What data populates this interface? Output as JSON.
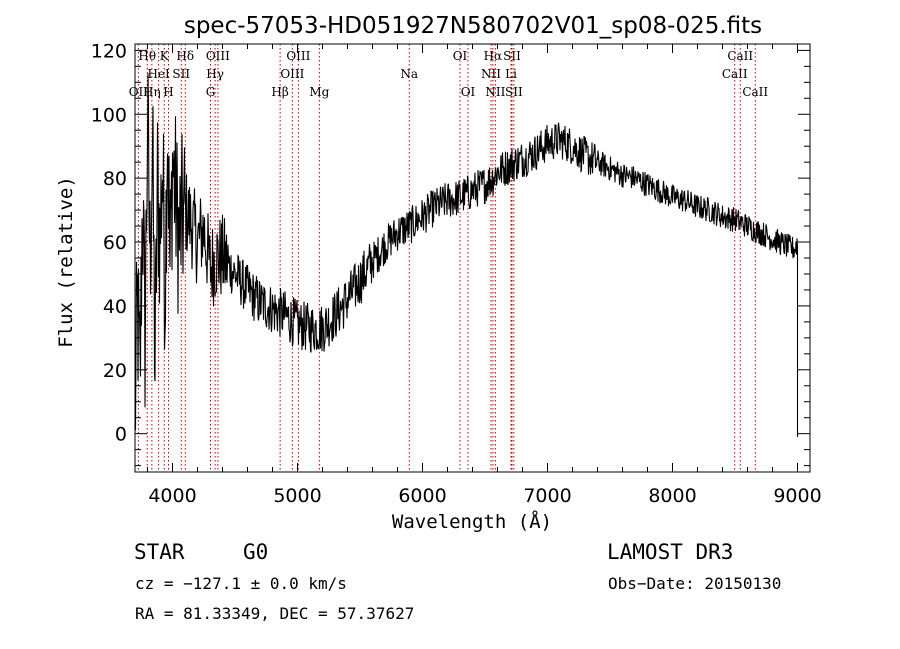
{
  "chart_data": {
    "type": "line",
    "title": "spec-57053-HD051927N580702V01_sp08-025.fits",
    "xlabel": "Wavelength (Å)",
    "ylabel": "Flux (relative)",
    "xlim": [
      3700,
      9100
    ],
    "ylim": [
      -12,
      122
    ],
    "xticks": [
      4000,
      5000,
      6000,
      7000,
      8000,
      9000
    ],
    "yticks": [
      0,
      20,
      40,
      60,
      80,
      100,
      120
    ],
    "series": [
      {
        "name": "flux",
        "x": [
          3700,
          3720,
          3740,
          3760,
          3780,
          3800,
          3820,
          3840,
          3860,
          3880,
          3900,
          3920,
          3940,
          3960,
          3980,
          4000,
          4050,
          4100,
          4150,
          4200,
          4250,
          4300,
          4350,
          4400,
          4500,
          4600,
          4700,
          4800,
          4900,
          5000,
          5100,
          5200,
          5300,
          5400,
          5500,
          5600,
          5700,
          5800,
          5900,
          6000,
          6100,
          6200,
          6300,
          6400,
          6500,
          6560,
          6600,
          6700,
          6800,
          6900,
          7000,
          7100,
          7200,
          7300,
          7400,
          7500,
          7600,
          7700,
          7800,
          7900,
          8000,
          8100,
          8200,
          8300,
          8400,
          8500,
          8600,
          8700,
          8800,
          8900,
          8950,
          8980,
          9000
        ],
        "values": [
          5,
          40,
          15,
          75,
          30,
          98,
          55,
          90,
          20,
          78,
          60,
          85,
          45,
          100,
          50,
          85,
          62,
          70,
          66,
          60,
          64,
          52,
          55,
          55,
          50,
          45,
          41,
          39,
          37,
          34,
          33,
          33,
          37,
          42,
          48,
          54,
          59,
          63,
          65,
          68,
          71,
          73,
          74,
          76,
          78,
          80,
          82,
          84,
          86,
          88,
          91,
          92,
          90,
          87,
          85,
          83,
          81,
          80,
          78,
          76,
          74,
          73,
          71,
          70,
          68,
          67,
          65,
          63,
          61,
          59,
          58,
          58,
          60
        ]
      }
    ],
    "spectral_lines": [
      {
        "label": "OII",
        "wavelength": 3727,
        "row": 2
      },
      {
        "label": "Hθ",
        "wavelength": 3798,
        "row": 0
      },
      {
        "label": "Hη",
        "wavelength": 3835,
        "row": 2
      },
      {
        "label": "HeI",
        "wavelength": 3889,
        "row": 1
      },
      {
        "label": "K",
        "wavelength": 3934,
        "row": 0
      },
      {
        "label": "H",
        "wavelength": 3968,
        "row": 2
      },
      {
        "label": "SII",
        "wavelength": 4070,
        "row": 1
      },
      {
        "label": "Hδ",
        "wavelength": 4102,
        "row": 0
      },
      {
        "label": "G",
        "wavelength": 4304,
        "row": 2
      },
      {
        "label": "Hγ",
        "wavelength": 4341,
        "row": 1
      },
      {
        "label": "OIII",
        "wavelength": 4363,
        "row": 0
      },
      {
        "label": "Hβ",
        "wavelength": 4861,
        "row": 2
      },
      {
        "label": "OIII",
        "wavelength": 4959,
        "row": 1
      },
      {
        "label": "OIII",
        "wavelength": 5007,
        "row": 0
      },
      {
        "label": "Mg",
        "wavelength": 5175,
        "row": 2
      },
      {
        "label": "Na",
        "wavelength": 5894,
        "row": 1
      },
      {
        "label": "OI",
        "wavelength": 6300,
        "row": 0
      },
      {
        "label": "OI",
        "wavelength": 6364,
        "row": 2
      },
      {
        "label": "NII",
        "wavelength": 6548,
        "row": 1
      },
      {
        "label": "Hα",
        "wavelength": 6563,
        "row": 0
      },
      {
        "label": "NII",
        "wavelength": 6583,
        "row": 2
      },
      {
        "label": "Li",
        "wavelength": 6708,
        "row": 1
      },
      {
        "label": "SII",
        "wavelength": 6716,
        "row": 0
      },
      {
        "label": "SII",
        "wavelength": 6731,
        "row": 2
      },
      {
        "label": "CaII",
        "wavelength": 8498,
        "row": 1
      },
      {
        "label": "CaII",
        "wavelength": 8542,
        "row": 0
      },
      {
        "label": "CaII",
        "wavelength": 8662,
        "row": 2
      }
    ]
  },
  "info": {
    "object_type": "STAR",
    "subclass": "G0",
    "survey": "LAMOST DR3",
    "cz_text": "cz = −127.1 ± 0.0 km/s",
    "obs_date_text": "Obs−Date: 20150130",
    "radec_text": "RA =  81.33349, DEC =  57.37627"
  },
  "colors": {
    "line_marker": "#c00000",
    "spectrum": "#000000"
  }
}
